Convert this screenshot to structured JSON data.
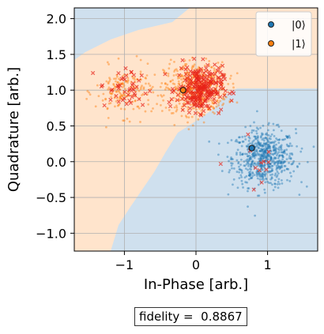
{
  "chart_data": {
    "type": "scatter",
    "xlabel": "In-Phase [arb.]",
    "ylabel": "Quadrature [arb.]",
    "xlim": [
      -1.7,
      1.7
    ],
    "ylim": [
      -1.25,
      2.15
    ],
    "x_ticks": [
      -1,
      0,
      1
    ],
    "y_ticks": [
      -1.0,
      -0.5,
      0.0,
      0.5,
      1.0,
      1.5,
      2.0
    ],
    "x_tick_labels": [
      "−1",
      "0",
      "1"
    ],
    "y_tick_labels": [
      "−1.0",
      "−0.5",
      "0.0",
      "0.5",
      "1.0",
      "1.5",
      "2.0"
    ],
    "grid": true,
    "legend_position": "top-right",
    "legend": [
      {
        "label": "|0⟩",
        "color": "#1f77b4"
      },
      {
        "label": "|1⟩",
        "color": "#ff7f0e"
      }
    ],
    "background_regions": {
      "state0_color": "#cfe0ee",
      "state1_color": "#ffe4cc",
      "description": "decision boundary; blue region lower-right and top-left, orange elsewhere"
    },
    "series": [
      {
        "name": "|0⟩",
        "color": "#1f77b4",
        "marker": "dot",
        "center": [
          0.95,
          0.05
        ],
        "spread": [
          0.22,
          0.2
        ]
      },
      {
        "name": "|1⟩",
        "color": "#ff7f0e",
        "marker": "dot",
        "clusters": [
          {
            "center": [
              0.0,
              1.02
            ],
            "spread": [
              0.22,
              0.18
            ]
          },
          {
            "center": [
              -1.0,
              0.98
            ],
            "spread": [
              0.2,
              0.17
            ]
          }
        ]
      }
    ],
    "misclassified": {
      "color": "#e8231a",
      "marker": "x"
    },
    "centroids": [
      {
        "state": "|0⟩",
        "x": 0.78,
        "y": 0.19,
        "color": "#1f77b4"
      },
      {
        "state": "|1⟩",
        "x": -0.18,
        "y": 1.0,
        "color": "#ff7f0e"
      }
    ]
  },
  "fidelity_text": "fidelity =  0.8867"
}
